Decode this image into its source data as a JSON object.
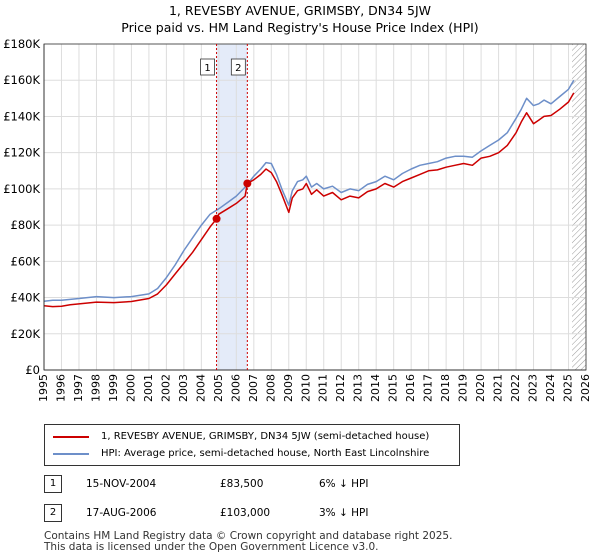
{
  "title_line1": "1, REVESBY AVENUE, GRIMSBY, DN34 5JW",
  "title_line2": "Price paid vs. HM Land Registry's House Price Index (HPI)",
  "chart_data": {
    "type": "line",
    "xlim": [
      1995,
      2026
    ],
    "ylim": [
      0,
      180000
    ],
    "y_ticks": [
      0,
      20000,
      40000,
      60000,
      80000,
      100000,
      120000,
      140000,
      160000,
      180000
    ],
    "y_tick_labels": [
      "£0",
      "£20K",
      "£40K",
      "£60K",
      "£80K",
      "£100K",
      "£120K",
      "£140K",
      "£160K",
      "£180K"
    ],
    "x_ticks": [
      1995,
      1996,
      1997,
      1998,
      1999,
      2000,
      2001,
      2002,
      2003,
      2004,
      2005,
      2006,
      2007,
      2008,
      2009,
      2010,
      2011,
      2012,
      2013,
      2014,
      2015,
      2016,
      2017,
      2018,
      2019,
      2020,
      2021,
      2022,
      2023,
      2024,
      2025,
      2026
    ],
    "grid": true,
    "shaded_region": [
      2004.87,
      2006.63
    ],
    "hatched_from": 2025.2,
    "markers": [
      {
        "label": "1",
        "x": 2004.87,
        "y": 83500
      },
      {
        "label": "2",
        "x": 2006.63,
        "y": 103000
      }
    ],
    "series": [
      {
        "name": "1, REVESBY AVENUE, GRIMSBY, DN34 5JW (semi-detached house)",
        "color": "#cc0000",
        "x": [
          1995,
          1995.5,
          1996,
          1996.5,
          1997,
          1998,
          1999,
          2000,
          2001,
          2001.5,
          2002,
          2002.5,
          2003,
          2003.5,
          2004,
          2004.5,
          2004.87,
          2005,
          2005.5,
          2006,
          2006.5,
          2006.63,
          2007,
          2007.4,
          2007.7,
          2008,
          2008.3,
          2008.6,
          2009,
          2009.2,
          2009.5,
          2009.8,
          2010,
          2010.3,
          2010.6,
          2011,
          2011.5,
          2012,
          2012.5,
          2013,
          2013.5,
          2014,
          2014.5,
          2015,
          2015.5,
          2016,
          2016.5,
          2017,
          2017.5,
          2018,
          2018.5,
          2019,
          2019.5,
          2020,
          2020.5,
          2021,
          2021.5,
          2022,
          2022.3,
          2022.6,
          2023,
          2023.3,
          2023.6,
          2024,
          2024.5,
          2025,
          2025.3
        ],
        "y": [
          35500,
          35000,
          35200,
          36000,
          36500,
          37500,
          37200,
          37800,
          39500,
          42000,
          47000,
          53000,
          59000,
          65000,
          72000,
          79000,
          83500,
          86000,
          89000,
          92000,
          96000,
          103000,
          105000,
          108000,
          111000,
          109000,
          104000,
          97000,
          87000,
          95000,
          99000,
          100000,
          103000,
          97000,
          99500,
          96000,
          98000,
          94000,
          96000,
          95000,
          98500,
          100000,
          103000,
          101000,
          104000,
          106000,
          108000,
          110000,
          110500,
          112000,
          113000,
          114000,
          113000,
          117000,
          118000,
          120000,
          124000,
          131000,
          137000,
          142000,
          136000,
          138000,
          140000,
          140500,
          144000,
          148000,
          153000
        ]
      },
      {
        "name": "HPI: Average price, semi-detached house, North East Lincolnshire",
        "color": "#6d8fc9",
        "x": [
          1995,
          1995.5,
          1996,
          1996.5,
          1997,
          1998,
          1999,
          2000,
          2001,
          2001.5,
          2002,
          2002.5,
          2003,
          2003.5,
          2004,
          2004.5,
          2005,
          2005.5,
          2006,
          2006.5,
          2007,
          2007.4,
          2007.7,
          2008,
          2008.3,
          2008.6,
          2009,
          2009.2,
          2009.5,
          2009.8,
          2010,
          2010.3,
          2010.6,
          2011,
          2011.5,
          2012,
          2012.5,
          2013,
          2013.5,
          2014,
          2014.5,
          2015,
          2015.5,
          2016,
          2016.5,
          2017,
          2017.5,
          2018,
          2018.5,
          2019,
          2019.5,
          2020,
          2020.5,
          2021,
          2021.5,
          2022,
          2022.3,
          2022.6,
          2023,
          2023.3,
          2023.6,
          2024,
          2024.5,
          2025,
          2025.3
        ],
        "y": [
          38000,
          38500,
          38500,
          39000,
          39500,
          40500,
          40000,
          40500,
          42000,
          45000,
          51000,
          58000,
          66000,
          73000,
          80000,
          86000,
          89000,
          92500,
          96000,
          101000,
          107000,
          111000,
          114500,
          114000,
          108000,
          100000,
          91000,
          99000,
          104000,
          105000,
          107000,
          101000,
          103000,
          100000,
          101500,
          98000,
          100000,
          99000,
          102500,
          104000,
          107000,
          105000,
          108500,
          111000,
          113000,
          114000,
          115000,
          117000,
          118000,
          118000,
          117500,
          121000,
          124000,
          127000,
          131000,
          139000,
          144000,
          150000,
          146000,
          147000,
          149000,
          147000,
          151000,
          155000,
          160000
        ]
      }
    ]
  },
  "legend": {
    "item1": "1, REVESBY AVENUE, GRIMSBY, DN34 5JW (semi-detached house)",
    "item2": "HPI: Average price, semi-detached house, North East Lincolnshire"
  },
  "transactions": [
    {
      "num": "1",
      "date": "15-NOV-2004",
      "price": "£83,500",
      "hpi": "6% ↓ HPI"
    },
    {
      "num": "2",
      "date": "17-AUG-2006",
      "price": "£103,000",
      "hpi": "3% ↓ HPI"
    }
  ],
  "footer": {
    "line1": "Contains HM Land Registry data © Crown copyright and database right 2025.",
    "line2": "This data is licensed under the Open Government Licence v3.0."
  }
}
